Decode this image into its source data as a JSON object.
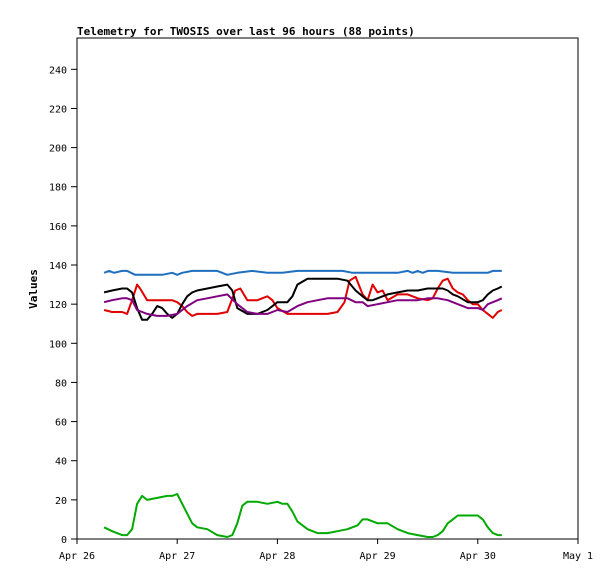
{
  "chart_data": {
    "type": "line",
    "title": "Telemetry for TWOSIS over last 96 hours (88 points)",
    "xlabel": "",
    "ylabel": "Values",
    "xlim": [
      0,
      5
    ],
    "ylim": [
      0,
      256
    ],
    "grid": false,
    "legend": "none",
    "x_ticks": [
      {
        "v": 0,
        "label": "Apr 26"
      },
      {
        "v": 1,
        "label": "Apr 27"
      },
      {
        "v": 2,
        "label": "Apr 28"
      },
      {
        "v": 3,
        "label": "Apr 29"
      },
      {
        "v": 4,
        "label": "Apr 30"
      },
      {
        "v": 5,
        "label": "May 1"
      }
    ],
    "y_ticks": [
      0,
      20,
      40,
      60,
      80,
      100,
      120,
      140,
      160,
      180,
      200,
      220,
      240
    ],
    "series": [
      {
        "color": "#1f6fc0",
        "x": [
          0.27,
          0.32,
          0.37,
          0.45,
          0.5,
          0.58,
          0.7,
          0.85,
          0.95,
          1.0,
          1.05,
          1.15,
          1.28,
          1.4,
          1.5,
          1.6,
          1.75,
          1.9,
          2.05,
          2.2,
          2.35,
          2.5,
          2.65,
          2.75,
          2.9,
          3.0,
          3.1,
          3.2,
          3.3,
          3.35,
          3.4,
          3.45,
          3.5,
          3.6,
          3.75,
          3.9,
          4.0,
          4.1,
          4.15,
          4.2,
          4.24
        ],
        "y": [
          136,
          137,
          136,
          137,
          137,
          135,
          135,
          135,
          136,
          135,
          136,
          137,
          137,
          137,
          135,
          136,
          137,
          136,
          136,
          137,
          137,
          137,
          137,
          136,
          136,
          136,
          136,
          136,
          137,
          136,
          137,
          136,
          137,
          137,
          136,
          136,
          136,
          136,
          137,
          137,
          137
        ]
      },
      {
        "color": "#e00000",
        "x": [
          0.27,
          0.35,
          0.45,
          0.5,
          0.55,
          0.6,
          0.63,
          0.7,
          0.8,
          0.9,
          0.95,
          1.0,
          1.05,
          1.1,
          1.15,
          1.2,
          1.3,
          1.4,
          1.5,
          1.58,
          1.63,
          1.7,
          1.8,
          1.9,
          1.95,
          2.0,
          2.1,
          2.2,
          2.3,
          2.4,
          2.5,
          2.6,
          2.67,
          2.72,
          2.78,
          2.85,
          2.9,
          2.95,
          3.0,
          3.05,
          3.1,
          3.2,
          3.3,
          3.4,
          3.5,
          3.55,
          3.6,
          3.65,
          3.7,
          3.75,
          3.8,
          3.85,
          3.9,
          3.95,
          4.0,
          4.05,
          4.1,
          4.15,
          4.2,
          4.24
        ],
        "y": [
          117,
          116,
          116,
          115,
          122,
          130,
          128,
          122,
          122,
          122,
          122,
          121,
          119,
          116,
          114,
          115,
          115,
          115,
          116,
          127,
          128,
          122,
          122,
          124,
          122,
          118,
          115,
          115,
          115,
          115,
          115,
          116,
          121,
          132,
          134,
          125,
          122,
          130,
          126,
          127,
          122,
          125,
          125,
          123,
          122,
          123,
          128,
          132,
          133,
          128,
          126,
          125,
          122,
          120,
          120,
          117,
          115,
          113,
          116,
          117
        ]
      },
      {
        "color": "#000000",
        "x": [
          0.27,
          0.35,
          0.45,
          0.5,
          0.55,
          0.6,
          0.65,
          0.7,
          0.75,
          0.8,
          0.85,
          0.9,
          0.95,
          1.0,
          1.05,
          1.1,
          1.15,
          1.2,
          1.3,
          1.4,
          1.5,
          1.55,
          1.6,
          1.7,
          1.8,
          1.9,
          2.0,
          2.1,
          2.15,
          2.2,
          2.3,
          2.4,
          2.5,
          2.6,
          2.7,
          2.78,
          2.85,
          2.9,
          2.95,
          3.0,
          3.1,
          3.2,
          3.3,
          3.4,
          3.5,
          3.6,
          3.65,
          3.7,
          3.75,
          3.8,
          3.9,
          4.0,
          4.05,
          4.1,
          4.15,
          4.2,
          4.24
        ],
        "y": [
          126,
          127,
          128,
          128,
          126,
          118,
          112,
          112,
          115,
          119,
          118,
          115,
          113,
          115,
          120,
          124,
          126,
          127,
          128,
          129,
          130,
          127,
          118,
          115,
          115,
          117,
          121,
          121,
          124,
          130,
          133,
          133,
          133,
          133,
          132,
          127,
          124,
          122,
          122,
          123,
          125,
          126,
          127,
          127,
          128,
          128,
          128,
          127,
          125,
          124,
          121,
          121,
          122,
          125,
          127,
          128,
          129
        ]
      },
      {
        "color": "#800080",
        "x": [
          0.27,
          0.35,
          0.45,
          0.5,
          0.55,
          0.6,
          0.7,
          0.8,
          0.9,
          1.0,
          1.05,
          1.1,
          1.2,
          1.3,
          1.4,
          1.5,
          1.6,
          1.7,
          1.8,
          1.9,
          2.0,
          2.1,
          2.2,
          2.3,
          2.4,
          2.5,
          2.6,
          2.7,
          2.78,
          2.85,
          2.9,
          3.0,
          3.1,
          3.2,
          3.3,
          3.4,
          3.5,
          3.6,
          3.7,
          3.75,
          3.8,
          3.9,
          4.0,
          4.05,
          4.1,
          4.2,
          4.24
        ],
        "y": [
          121,
          122,
          123,
          123,
          122,
          117,
          115,
          114,
          114,
          115,
          117,
          119,
          122,
          123,
          124,
          125,
          120,
          116,
          115,
          115,
          117,
          116,
          119,
          121,
          122,
          123,
          123,
          123,
          121,
          121,
          119,
          120,
          121,
          122,
          122,
          122,
          123,
          123,
          122,
          121,
          120,
          118,
          118,
          117,
          120,
          122,
          123
        ]
      },
      {
        "color": "#00aa00",
        "x": [
          0.27,
          0.35,
          0.45,
          0.5,
          0.55,
          0.6,
          0.65,
          0.7,
          0.8,
          0.9,
          0.95,
          1.0,
          1.05,
          1.1,
          1.15,
          1.2,
          1.3,
          1.4,
          1.5,
          1.55,
          1.6,
          1.65,
          1.7,
          1.8,
          1.9,
          2.0,
          2.05,
          2.1,
          2.15,
          2.2,
          2.3,
          2.4,
          2.5,
          2.6,
          2.7,
          2.8,
          2.85,
          2.9,
          3.0,
          3.1,
          3.2,
          3.3,
          3.4,
          3.5,
          3.55,
          3.6,
          3.65,
          3.7,
          3.75,
          3.8,
          3.9,
          4.0,
          4.05,
          4.1,
          4.15,
          4.2,
          4.24
        ],
        "y": [
          6,
          4,
          2,
          2,
          5,
          18,
          22,
          20,
          21,
          22,
          22,
          23,
          18,
          13,
          8,
          6,
          5,
          2,
          1,
          2,
          8,
          17,
          19,
          19,
          18,
          19,
          18,
          18,
          14,
          9,
          5,
          3,
          3,
          4,
          5,
          7,
          10,
          10,
          8,
          8,
          5,
          3,
          2,
          1,
          1,
          2,
          4,
          8,
          10,
          12,
          12,
          12,
          10,
          6,
          3,
          2,
          2
        ]
      }
    ]
  }
}
